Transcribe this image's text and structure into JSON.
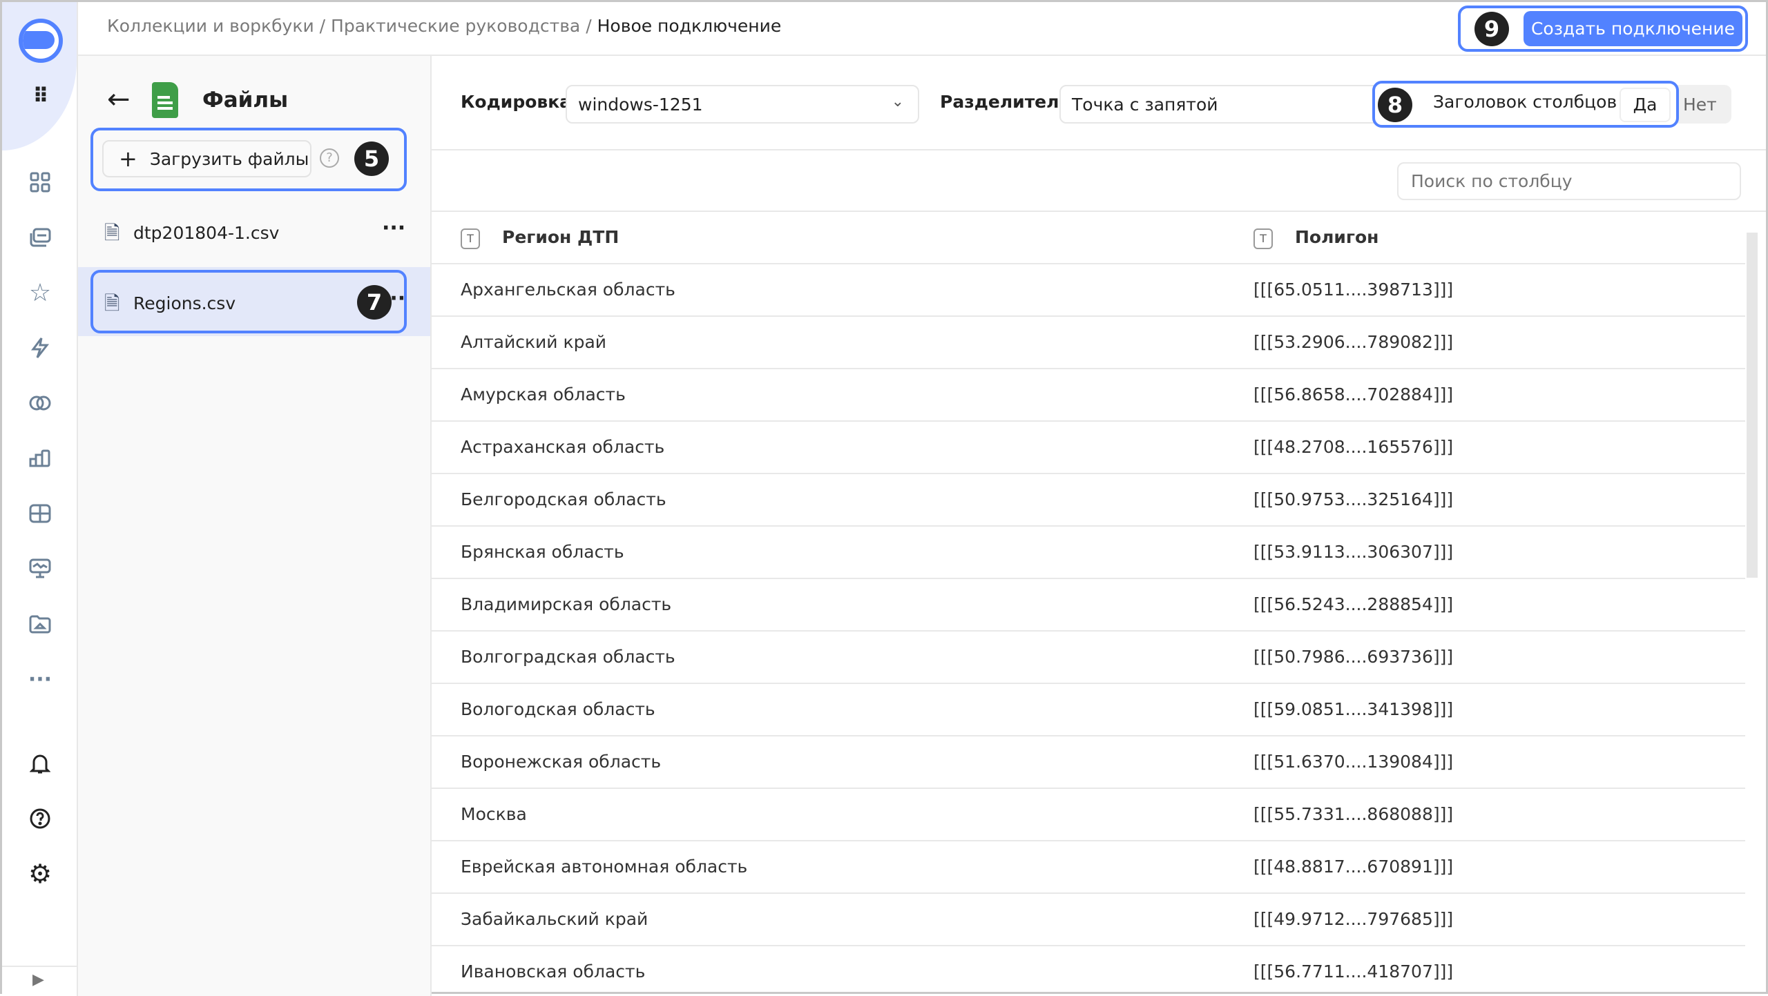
{
  "breadcrumb": {
    "items": [
      "Коллекции и воркбуки",
      "Практические руководства"
    ],
    "current": "Новое подключение",
    "separator": "/"
  },
  "header": {
    "create_button": "Создать подключение",
    "badge": "9"
  },
  "files_panel": {
    "title": "Файлы",
    "upload_button": "Загрузить файлы",
    "upload_badge": "5",
    "files": [
      {
        "name": "dtp201804-1.csv"
      },
      {
        "name": "Regions.csv",
        "selected": true,
        "badge": "7"
      }
    ]
  },
  "toolbar": {
    "encoding_label": "Кодировка",
    "encoding_value": "windows-1251",
    "delimiter_label": "Разделитель",
    "delimiter_value": "Точка с запятой",
    "header_label": "Заголовок столбцов",
    "header_badge": "8",
    "header_options": [
      "Да",
      "Нет"
    ],
    "header_selected": "Да"
  },
  "search": {
    "placeholder": "Поиск по столбцу"
  },
  "table": {
    "columns": [
      "Регион ДТП",
      "Полигон"
    ],
    "rows": [
      [
        "Архангельская область",
        "[[[65.0511....398713]]]"
      ],
      [
        "Алтайский край",
        "[[[53.2906....789082]]]"
      ],
      [
        "Амурская область",
        "[[[56.8658....702884]]]"
      ],
      [
        "Астраханская область",
        "[[[48.2708....165576]]]"
      ],
      [
        "Белгородская область",
        "[[[50.9753....325164]]]"
      ],
      [
        "Брянская область",
        "[[[53.9113....306307]]]"
      ],
      [
        "Владимирская область",
        "[[[56.5243....288854]]]"
      ],
      [
        "Волгоградская область",
        "[[[50.7986....693736]]]"
      ],
      [
        "Вологодская область",
        "[[[59.0851....341398]]]"
      ],
      [
        "Воронежская область",
        "[[[51.6370....139084]]]"
      ],
      [
        "Москва",
        "[[[55.7331....868088]]]"
      ],
      [
        "Еврейская автономная область",
        "[[[48.8817....670891]]]"
      ],
      [
        "Забайкальский край",
        "[[[49.9712....797685]]]"
      ],
      [
        "Ивановская область",
        "[[[56.7711....418707]]]"
      ]
    ]
  },
  "colors": {
    "accent": "#5282ff",
    "selected_row": "#e3e8f9",
    "file_icon": "#3f9e48"
  }
}
